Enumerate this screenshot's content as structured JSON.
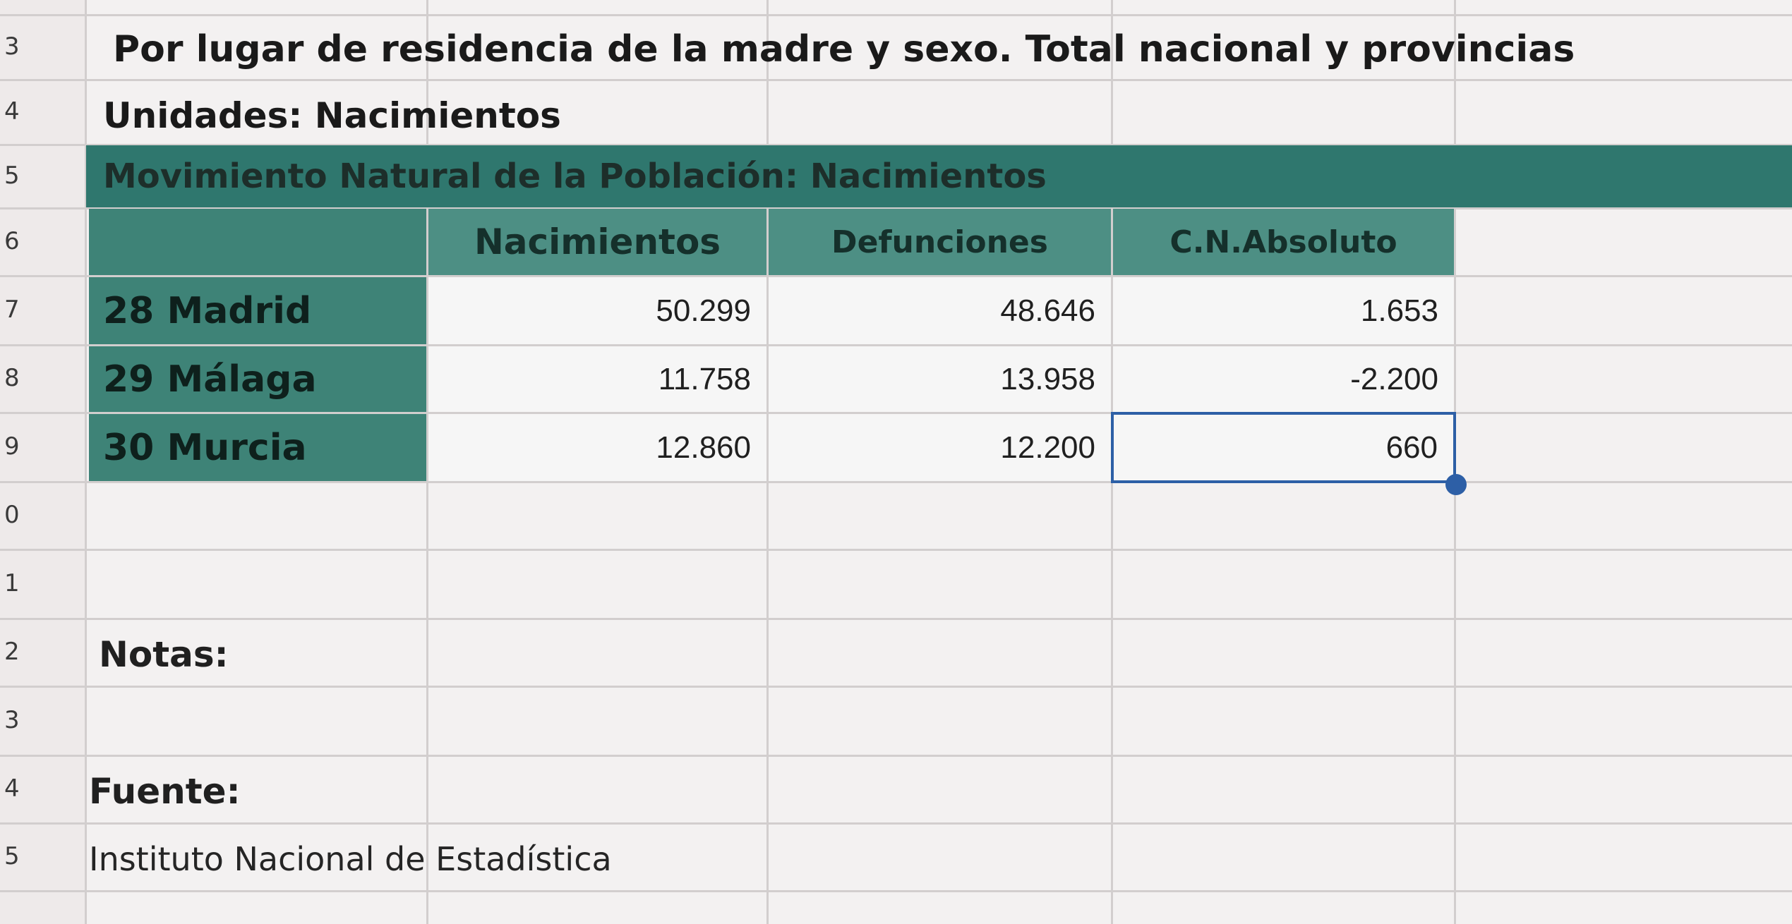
{
  "rows": {
    "numbers": [
      "3",
      "4",
      "5",
      "6",
      "7",
      "8",
      "9",
      "0",
      "1",
      "2",
      "3",
      "4",
      "5"
    ]
  },
  "title": "Por lugar de residencia de la madre y sexo. Total nacional y provincias",
  "units": "Unidades: Nacimientos",
  "banner": "Movimiento Natural de la Población: Nacimientos",
  "table": {
    "headers": [
      "Nacimientos",
      "Defunciones",
      "C.N.Absoluto"
    ],
    "rows": [
      {
        "province": "28 Madrid",
        "values": [
          "50.299",
          "48.646",
          "1.653"
        ]
      },
      {
        "province": "29 Málaga",
        "values": [
          "11.758",
          "13.958",
          "-2.200"
        ]
      },
      {
        "province": "30 Murcia",
        "values": [
          "12.860",
          "12.200",
          "660"
        ]
      }
    ]
  },
  "notes_label": "Notas:",
  "source_label": "Fuente:",
  "source_text": "Instituto Nacional de Estadística",
  "colors": {
    "banner": "#2f776e",
    "header_fill": "#4d8f84",
    "selection": "#2d5fa6"
  }
}
